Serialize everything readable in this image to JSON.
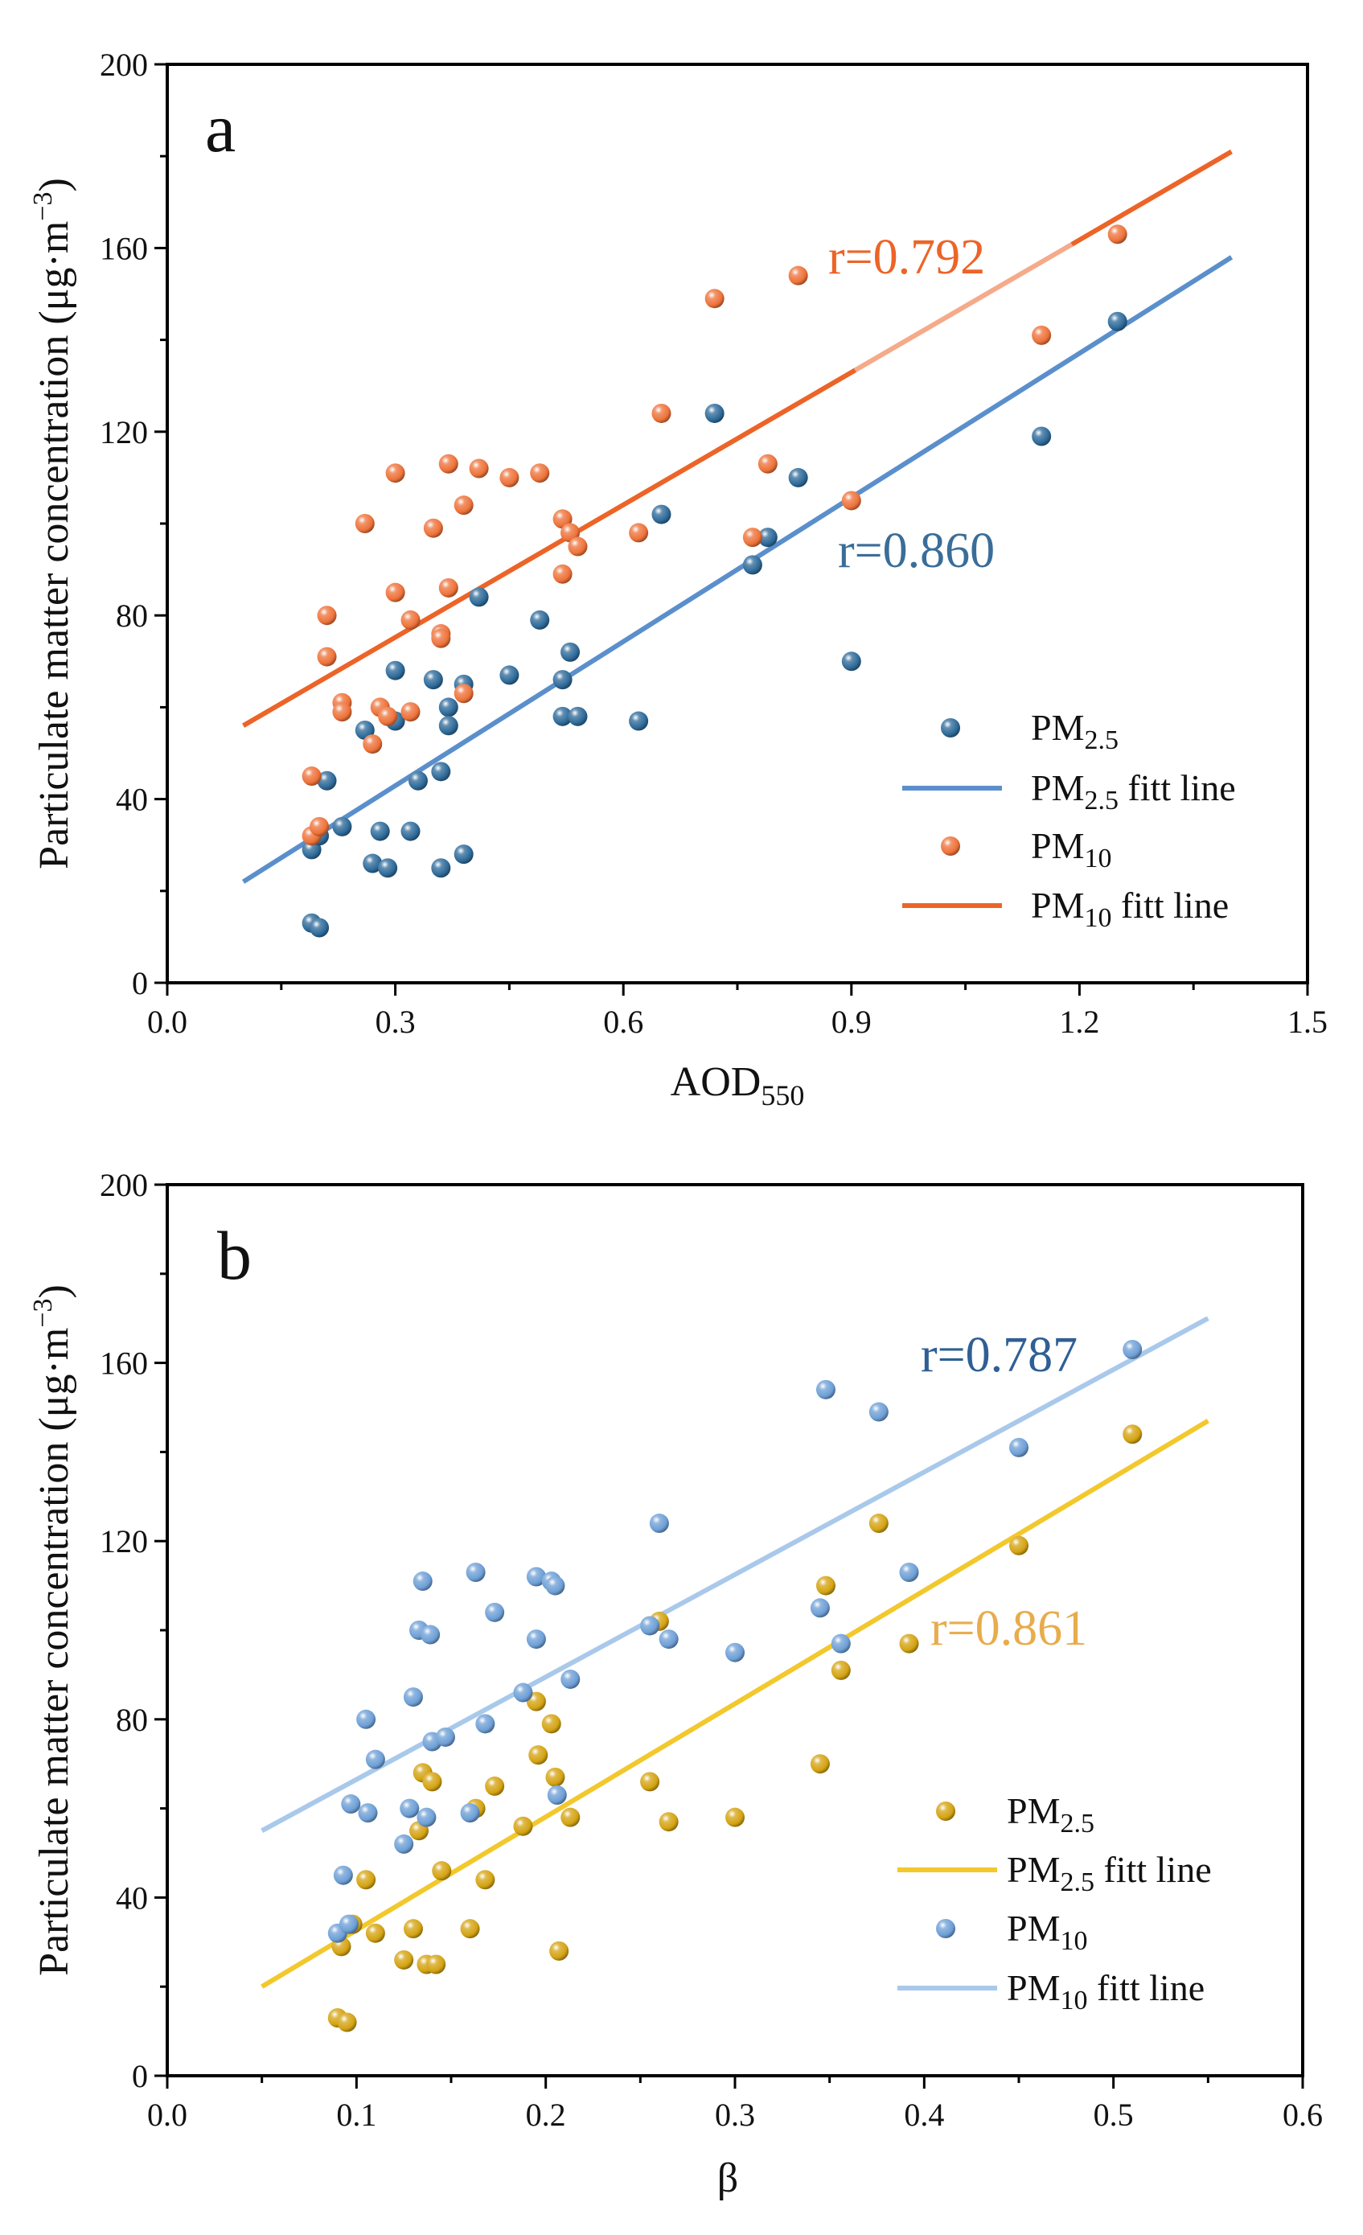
{
  "chart_data": [
    {
      "type": "scatter",
      "panel_label": "a",
      "xlabel": {
        "main": "AOD",
        "sub": "550"
      },
      "ylabel": "Particulate matter concentration (μg·m",
      "ylabel_sup": "−3",
      "ylabel_close": ")",
      "xlim": [
        0.0,
        1.5
      ],
      "ylim": [
        0,
        200
      ],
      "xticks": [
        "0.0",
        "0.3",
        "0.6",
        "0.9",
        "1.2",
        "1.5"
      ],
      "yticks": [
        "0",
        "40",
        "80",
        "120",
        "160",
        "200"
      ],
      "series": [
        {
          "name": "PM",
          "sub": "2.5",
          "kind": "points",
          "color": "#2e6a99",
          "points": [
            [
              0.19,
              13
            ],
            [
              0.2,
              12
            ],
            [
              0.19,
              29
            ],
            [
              0.2,
              32
            ],
            [
              0.21,
              44
            ],
            [
              0.23,
              34
            ],
            [
              0.26,
              55
            ],
            [
              0.27,
              26
            ],
            [
              0.28,
              33
            ],
            [
              0.29,
              25
            ],
            [
              0.3,
              68
            ],
            [
              0.3,
              57
            ],
            [
              0.32,
              33
            ],
            [
              0.33,
              44
            ],
            [
              0.35,
              66
            ],
            [
              0.36,
              46
            ],
            [
              0.36,
              25
            ],
            [
              0.37,
              60
            ],
            [
              0.37,
              56
            ],
            [
              0.39,
              65
            ],
            [
              0.39,
              28
            ],
            [
              0.41,
              84
            ],
            [
              0.45,
              67
            ],
            [
              0.49,
              79
            ],
            [
              0.52,
              58
            ],
            [
              0.52,
              66
            ],
            [
              0.53,
              72
            ],
            [
              0.54,
              58
            ],
            [
              0.62,
              57
            ],
            [
              0.65,
              102
            ],
            [
              0.72,
              124
            ],
            [
              0.77,
              91
            ],
            [
              0.79,
              97
            ],
            [
              0.83,
              110
            ],
            [
              0.9,
              70
            ],
            [
              1.15,
              119
            ],
            [
              1.25,
              144
            ]
          ]
        },
        {
          "name": "PM",
          "sub": "2.5",
          "suffix": " fitt line",
          "kind": "line",
          "color": "#5b8fcc",
          "fit": [
            [
              0.1,
              22
            ],
            [
              1.4,
              158
            ]
          ]
        },
        {
          "name": "PM",
          "sub": "10",
          "kind": "points",
          "color": "#ee7239",
          "points": [
            [
              0.19,
              45
            ],
            [
              0.19,
              32
            ],
            [
              0.2,
              34
            ],
            [
              0.21,
              80
            ],
            [
              0.21,
              71
            ],
            [
              0.23,
              61
            ],
            [
              0.23,
              59
            ],
            [
              0.26,
              100
            ],
            [
              0.27,
              52
            ],
            [
              0.28,
              60
            ],
            [
              0.29,
              58
            ],
            [
              0.3,
              111
            ],
            [
              0.3,
              85
            ],
            [
              0.32,
              79
            ],
            [
              0.32,
              59
            ],
            [
              0.35,
              99
            ],
            [
              0.36,
              76
            ],
            [
              0.36,
              75
            ],
            [
              0.37,
              113
            ],
            [
              0.37,
              86
            ],
            [
              0.39,
              104
            ],
            [
              0.39,
              63
            ],
            [
              0.41,
              112
            ],
            [
              0.45,
              110
            ],
            [
              0.49,
              111
            ],
            [
              0.52,
              89
            ],
            [
              0.52,
              101
            ],
            [
              0.53,
              98
            ],
            [
              0.54,
              95
            ],
            [
              0.62,
              98
            ],
            [
              0.65,
              124
            ],
            [
              0.72,
              149
            ],
            [
              0.77,
              97
            ],
            [
              0.79,
              113
            ],
            [
              0.83,
              154
            ],
            [
              0.9,
              105
            ],
            [
              1.15,
              141
            ],
            [
              1.25,
              163
            ]
          ]
        },
        {
          "name": "PM",
          "sub": "10",
          "suffix": " fitt line",
          "kind": "line",
          "color": "#ec6428",
          "fit": [
            [
              0.1,
              56
            ],
            [
              1.4,
              181
            ]
          ]
        }
      ],
      "annotations": [
        {
          "text": "r=0.792",
          "color": "#ec6428"
        },
        {
          "text": "r=0.860",
          "color": "#3a6d99"
        }
      ]
    },
    {
      "type": "scatter",
      "panel_label": "b",
      "xlabel": {
        "main": "β",
        "sub": ""
      },
      "ylabel": "Particulate matter concentration (μg·m",
      "ylabel_sup": "−3",
      "ylabel_close": ")",
      "xlim": [
        0.0,
        0.6
      ],
      "ylim": [
        0,
        200
      ],
      "xticks": [
        "0.0",
        "0.1",
        "0.2",
        "0.3",
        "0.4",
        "0.5",
        "0.6"
      ],
      "yticks": [
        "0",
        "40",
        "80",
        "120",
        "160",
        "200"
      ],
      "series": [
        {
          "name": "PM",
          "sub": "2.5",
          "kind": "points",
          "color": "#d4a312",
          "points": [
            [
              0.09,
              13
            ],
            [
              0.095,
              12
            ],
            [
              0.092,
              29
            ],
            [
              0.098,
              34
            ],
            [
              0.105,
              44
            ],
            [
              0.11,
              32
            ],
            [
              0.125,
              26
            ],
            [
              0.13,
              33
            ],
            [
              0.133,
              55
            ],
            [
              0.135,
              68
            ],
            [
              0.137,
              25
            ],
            [
              0.14,
              66
            ],
            [
              0.142,
              25
            ],
            [
              0.145,
              46
            ],
            [
              0.16,
              33
            ],
            [
              0.163,
              60
            ],
            [
              0.168,
              44
            ],
            [
              0.173,
              65
            ],
            [
              0.188,
              56
            ],
            [
              0.195,
              84
            ],
            [
              0.196,
              72
            ],
            [
              0.203,
              79
            ],
            [
              0.205,
              67
            ],
            [
              0.207,
              28
            ],
            [
              0.213,
              58
            ],
            [
              0.255,
              66
            ],
            [
              0.26,
              102
            ],
            [
              0.265,
              57
            ],
            [
              0.3,
              58
            ],
            [
              0.345,
              70
            ],
            [
              0.348,
              110
            ],
            [
              0.356,
              91
            ],
            [
              0.376,
              124
            ],
            [
              0.392,
              97
            ],
            [
              0.45,
              119
            ],
            [
              0.51,
              144
            ]
          ]
        },
        {
          "name": "PM",
          "sub": "2.5",
          "suffix": " fitt line",
          "kind": "line",
          "color": "#f2c82c",
          "fit": [
            [
              0.05,
              20
            ],
            [
              0.55,
              147
            ]
          ]
        },
        {
          "name": "PM",
          "sub": "10",
          "kind": "points",
          "color": "#6d9fd6",
          "points": [
            [
              0.09,
              32
            ],
            [
              0.093,
              45
            ],
            [
              0.096,
              34
            ],
            [
              0.097,
              61
            ],
            [
              0.105,
              80
            ],
            [
              0.106,
              59
            ],
            [
              0.11,
              71
            ],
            [
              0.125,
              52
            ],
            [
              0.128,
              60
            ],
            [
              0.13,
              85
            ],
            [
              0.133,
              100
            ],
            [
              0.135,
              111
            ],
            [
              0.137,
              58
            ],
            [
              0.139,
              99
            ],
            [
              0.14,
              75
            ],
            [
              0.147,
              76
            ],
            [
              0.16,
              59
            ],
            [
              0.163,
              113
            ],
            [
              0.168,
              79
            ],
            [
              0.173,
              104
            ],
            [
              0.188,
              86
            ],
            [
              0.195,
              112
            ],
            [
              0.195,
              98
            ],
            [
              0.203,
              111
            ],
            [
              0.205,
              110
            ],
            [
              0.206,
              63
            ],
            [
              0.213,
              89
            ],
            [
              0.255,
              101
            ],
            [
              0.26,
              124
            ],
            [
              0.265,
              98
            ],
            [
              0.3,
              95
            ],
            [
              0.345,
              105
            ],
            [
              0.348,
              154
            ],
            [
              0.356,
              97
            ],
            [
              0.376,
              149
            ],
            [
              0.392,
              113
            ],
            [
              0.45,
              141
            ],
            [
              0.51,
              163
            ]
          ]
        },
        {
          "name": "PM",
          "sub": "10",
          "suffix": " fitt line",
          "kind": "line",
          "color": "#a9c9eb",
          "fit": [
            [
              0.05,
              55
            ],
            [
              0.55,
              170
            ]
          ]
        }
      ],
      "annotations": [
        {
          "text": "r=0.787",
          "color": "#2f5f94"
        },
        {
          "text": "r=0.861",
          "color": "#e8ac4c"
        }
      ]
    }
  ]
}
